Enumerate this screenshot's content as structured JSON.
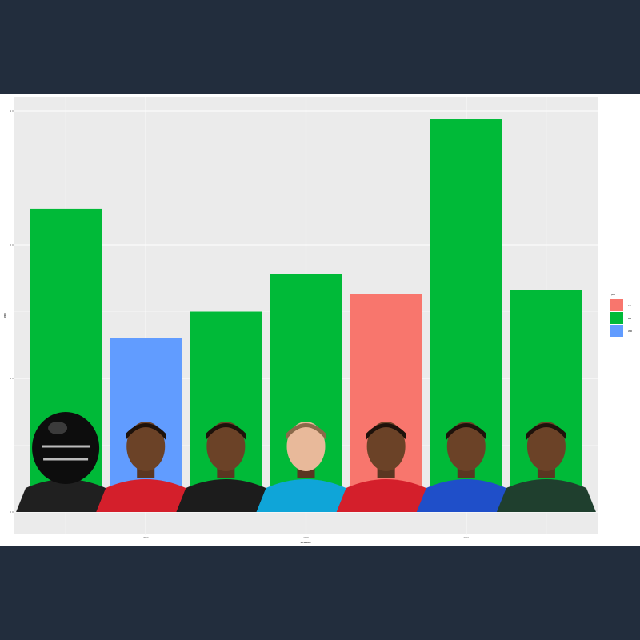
{
  "chart_data": {
    "type": "bar",
    "title": "",
    "xlabel": "season",
    "ylabel": "ypc",
    "x_ticks": [
      "2017",
      "2019",
      "2021"
    ],
    "y_ticks": [
      "0",
      "1",
      "2",
      "3"
    ],
    "ylim": [
      0,
      3.05
    ],
    "grid": true,
    "legend": {
      "title": "pos",
      "position": "right",
      "entries": [
        {
          "label": "LB",
          "color": "#f8766d"
        },
        {
          "label": "RB",
          "color": "#00ba38"
        },
        {
          "label": "WR",
          "color": "#619cff"
        }
      ]
    },
    "bars": [
      {
        "season": 2016,
        "pos": "RB",
        "value": 2.27
      },
      {
        "season": 2017,
        "pos": "WR",
        "value": 1.3
      },
      {
        "season": 2018,
        "pos": "RB",
        "value": 1.5
      },
      {
        "season": 2019,
        "pos": "RB",
        "value": 1.78
      },
      {
        "season": 2020,
        "pos": "LB",
        "value": 1.63
      },
      {
        "season": 2021,
        "pos": "RB",
        "value": 2.94
      },
      {
        "season": 2022,
        "pos": "RB",
        "value": 1.66
      }
    ],
    "player_photos": [
      {
        "icon": "helmet-silhouette"
      },
      {
        "icon": "player-red-jersey"
      },
      {
        "icon": "player-black-jersey"
      },
      {
        "icon": "player-blue-jersey"
      },
      {
        "icon": "player-red-jersey"
      },
      {
        "icon": "player-royal-blue-jersey"
      },
      {
        "icon": "player-green-jersey"
      }
    ]
  }
}
